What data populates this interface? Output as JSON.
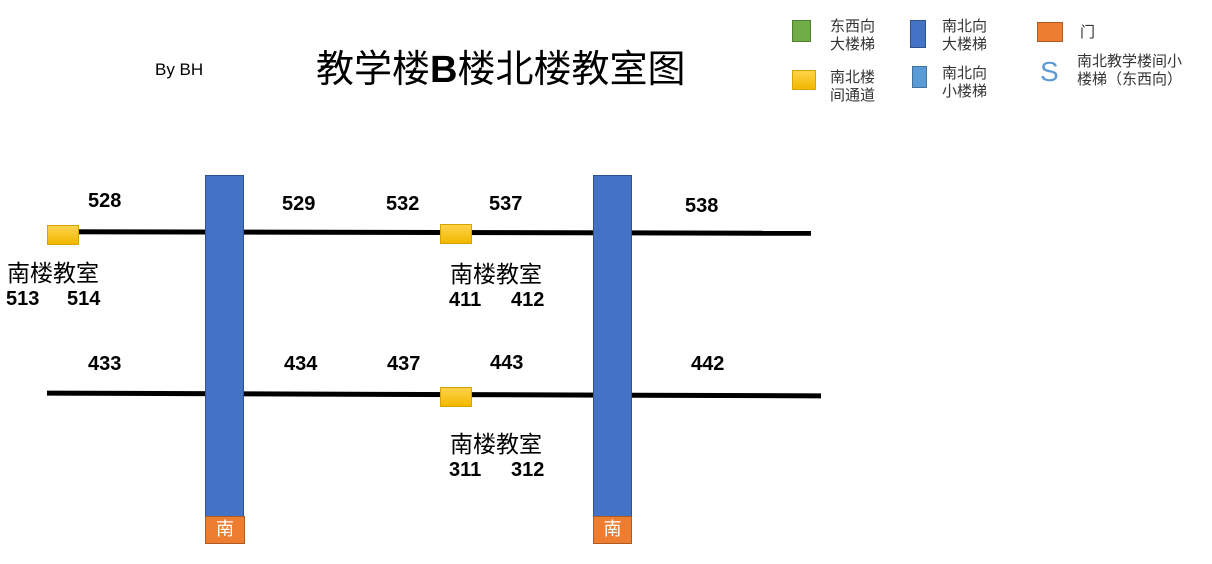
{
  "author": "By BH",
  "title": {
    "prefix": "教学楼",
    "bold": "B",
    "suffix": "楼北楼教室图"
  },
  "legend": {
    "ew_stair": {
      "line1": "东西向",
      "line2": "大楼梯",
      "color": "#70ad47"
    },
    "ns_passage": {
      "line1": "南北楼",
      "line2": "间通道",
      "color": "#ffc000"
    },
    "ns_big_stair": {
      "line1": "南北向",
      "line2": "大楼梯",
      "color": "#4472c4"
    },
    "ns_small_stair": {
      "line1": "南北向",
      "line2": "小楼梯",
      "color": "#5b9bd5"
    },
    "door": {
      "line1": "门",
      "color": "#ed7d31"
    },
    "small_stair": {
      "symbol": "S",
      "line1": "南北教学楼间小",
      "line2": "楼梯（东西向）"
    }
  },
  "floor5": {
    "rooms": [
      "528",
      "529",
      "532",
      "537",
      "538"
    ],
    "south": [
      {
        "label": "南楼教室",
        "rooms": [
          "513",
          "514"
        ]
      },
      {
        "label": "南楼教室",
        "rooms": [
          "411",
          "412"
        ]
      }
    ]
  },
  "floor4": {
    "rooms": [
      "433",
      "434",
      "437",
      "443",
      "442"
    ],
    "south": [
      {
        "label": "南楼教室",
        "rooms": [
          "311",
          "312"
        ]
      }
    ]
  },
  "doors": [
    "南",
    "南"
  ]
}
